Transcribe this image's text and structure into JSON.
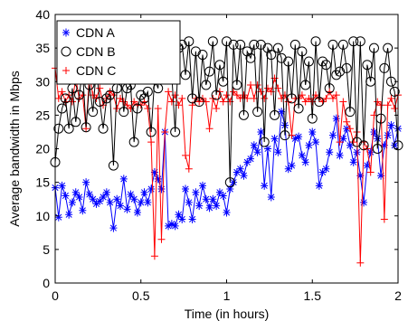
{
  "chart_data": {
    "type": "line",
    "xlabel": "Time (in hours)",
    "ylabel": "Average bandwidth in Mbps",
    "xlim": [
      0,
      2
    ],
    "ylim": [
      0,
      40
    ],
    "xticks": [
      0,
      0.5,
      1,
      1.5,
      2
    ],
    "xtick_labels": [
      "0",
      "0.5",
      "1",
      "1.5",
      "2"
    ],
    "yticks": [
      0,
      5,
      10,
      15,
      20,
      25,
      30,
      35,
      40
    ],
    "ytick_labels": [
      "0",
      "5",
      "10",
      "15",
      "20",
      "25",
      "30",
      "35",
      "40"
    ],
    "grid": false,
    "legend_position": "top-left",
    "x": [
      0.0,
      0.02,
      0.04,
      0.06,
      0.08,
      0.1,
      0.12,
      0.14,
      0.16,
      0.18,
      0.2,
      0.22,
      0.24,
      0.26,
      0.28,
      0.3,
      0.32,
      0.34,
      0.36,
      0.38,
      0.4,
      0.42,
      0.44,
      0.46,
      0.48,
      0.5,
      0.52,
      0.54,
      0.56,
      0.58,
      0.6,
      0.62,
      0.64,
      0.66,
      0.68,
      0.7,
      0.72,
      0.74,
      0.76,
      0.78,
      0.8,
      0.82,
      0.84,
      0.86,
      0.88,
      0.9,
      0.92,
      0.94,
      0.96,
      0.98,
      1.0,
      1.02,
      1.04,
      1.06,
      1.08,
      1.1,
      1.12,
      1.14,
      1.16,
      1.18,
      1.2,
      1.22,
      1.24,
      1.26,
      1.28,
      1.3,
      1.32,
      1.34,
      1.36,
      1.38,
      1.4,
      1.42,
      1.44,
      1.46,
      1.48,
      1.5,
      1.52,
      1.54,
      1.56,
      1.58,
      1.6,
      1.62,
      1.64,
      1.66,
      1.68,
      1.7,
      1.72,
      1.74,
      1.76,
      1.78,
      1.8,
      1.82,
      1.84,
      1.86,
      1.88,
      1.9,
      1.92,
      1.94,
      1.96,
      1.98,
      2.0
    ],
    "series": [
      {
        "name": "CDN A",
        "color": "#0000ff",
        "marker": "asterisk",
        "values": [
          14.2,
          9.8,
          14.5,
          13.0,
          10.2,
          12.0,
          13.5,
          12.8,
          10.8,
          15.0,
          13.2,
          12.5,
          11.8,
          12.2,
          12.8,
          13.5,
          12.0,
          8.2,
          12.5,
          11.5,
          15.5,
          11.0,
          13.2,
          12.5,
          10.5,
          12.0,
          13.5,
          12.0,
          14.0,
          16.5,
          15.5,
          14.0,
          22.5,
          8.5,
          8.8,
          8.5,
          10.2,
          9.5,
          14.0,
          12.0,
          9.5,
          13.5,
          11.5,
          14.5,
          12.5,
          11.2,
          12.5,
          11.5,
          13.5,
          13.0,
          10.5,
          14.0,
          15.0,
          16.5,
          17.0,
          16.0,
          18.0,
          18.5,
          20.5,
          19.5,
          22.5,
          14.5,
          20.0,
          12.8,
          21.5,
          19.5,
          25.5,
          23.5,
          17.0,
          17.5,
          21.5,
          21.8,
          19.0,
          18.0,
          20.5,
          22.5,
          21.0,
          14.5,
          16.5,
          17.0,
          19.5,
          22.0,
          24.5,
          19.0,
          21.5,
          23.0,
          20.5,
          18.0,
          19.5,
          16.0,
          12.0,
          17.5,
          19.5,
          22.5,
          21.5,
          16.0,
          20.5,
          22.0,
          23.5,
          20.5,
          23.0
        ]
      },
      {
        "name": "CDN B",
        "color": "#000000",
        "marker": "circle",
        "values": [
          18.0,
          23.0,
          26.0,
          27.5,
          23.0,
          29.0,
          24.0,
          28.0,
          31.5,
          23.2,
          29.5,
          25.5,
          32.0,
          27.0,
          23.0,
          27.5,
          28.0,
          17.5,
          29.0,
          31.5,
          25.5,
          29.0,
          29.5,
          21.0,
          26.0,
          28.0,
          27.5,
          28.5,
          22.5,
          30.5,
          29.0,
          36.0,
          34.5,
          35.0,
          31.0,
          22.5,
          35.0,
          35.5,
          31.0,
          36.0,
          27.5,
          34.5,
          27.0,
          34.0,
          29.5,
          31.5,
          36.0,
          28.0,
          32.5,
          30.0,
          36.0,
          15.0,
          35.5,
          29.5,
          35.5,
          25.0,
          34.5,
          33.5,
          35.5,
          25.5,
          35.5,
          21.0,
          35.0,
          34.0,
          25.0,
          35.0,
          33.5,
          22.0,
          33.0,
          27.5,
          35.5,
          26.0,
          34.5,
          29.5,
          33.0,
          24.5,
          36.0,
          27.0,
          33.0,
          32.5,
          29.0,
          35.5,
          31.0,
          31.5,
          35.5,
          32.0,
          25.5,
          36.0,
          21.0,
          36.0,
          20.5,
          32.5,
          30.0,
          35.0,
          20.0,
          24.5,
          32.0,
          35.0,
          30.0,
          28.5,
          20.5
        ]
      },
      {
        "name": "CDN C",
        "color": "#ff0000",
        "marker": "plus",
        "values": [
          32.0,
          27.5,
          28.5,
          27.0,
          28.0,
          27.0,
          30.5,
          27.5,
          28.0,
          23.0,
          31.0,
          28.0,
          27.5,
          29.0,
          26.5,
          27.5,
          28.5,
          28.0,
          26.0,
          27.5,
          27.0,
          26.5,
          26.0,
          27.0,
          26.5,
          26.5,
          27.0,
          26.0,
          21.0,
          4.0,
          26.0,
          6.5,
          22.5,
          28.5,
          27.0,
          28.0,
          26.5,
          27.5,
          19.0,
          17.0,
          26.5,
          27.5,
          27.0,
          27.5,
          27.0,
          23.0,
          27.5,
          26.0,
          28.5,
          27.0,
          28.0,
          27.0,
          28.5,
          28.0,
          27.5,
          28.0,
          27.5,
          29.5,
          27.5,
          29.5,
          28.5,
          27.5,
          29.0,
          28.5,
          30.5,
          29.0,
          27.5,
          28.0,
          27.0,
          22.0,
          27.5,
          27.5,
          28.0,
          27.0,
          27.5,
          27.0,
          28.0,
          27.5,
          27.0,
          27.5,
          28.5,
          27.5,
          28.0,
          21.0,
          27.0,
          24.0,
          23.0,
          21.0,
          22.5,
          3.0,
          21.0,
          20.0,
          16.5,
          25.0,
          27.0,
          26.5,
          9.5,
          26.5,
          27.5,
          26.0,
          28.0
        ]
      }
    ]
  }
}
